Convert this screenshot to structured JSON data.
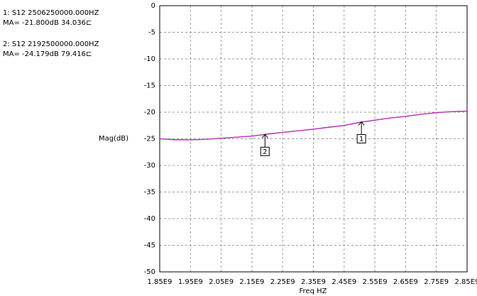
{
  "chart_data": {
    "type": "line",
    "ylabel": "Mag(dB)",
    "xlabel": "Freq HZ",
    "x": [
      1850000000,
      1900000000,
      1950000000,
      2000000000,
      2050000000,
      2100000000,
      2150000000,
      2200000000,
      2250000000,
      2300000000,
      2350000000,
      2400000000,
      2450000000,
      2500000000,
      2550000000,
      2600000000,
      2650000000,
      2700000000,
      2750000000,
      2800000000,
      2850000000
    ],
    "series": [
      {
        "name": "S12",
        "color": "#22aa22",
        "values": [
          -25.0,
          -25.15,
          -25.2,
          -25.1,
          -24.9,
          -24.7,
          -24.5,
          -24.1,
          -23.8,
          -23.5,
          -23.2,
          -22.8,
          -22.5,
          -21.9,
          -21.5,
          -21.1,
          -20.8,
          -20.4,
          -20.1,
          -19.9,
          -19.8
        ]
      },
      {
        "name": "S12",
        "color": "#cc22cc",
        "values": [
          -25.0,
          -25.2,
          -25.2,
          -25.1,
          -24.9,
          -24.7,
          -24.5,
          -24.15,
          -23.8,
          -23.5,
          -23.2,
          -22.85,
          -22.5,
          -21.95,
          -21.5,
          -21.1,
          -20.8,
          -20.4,
          -20.1,
          -19.9,
          -19.8
        ]
      }
    ],
    "xlim": [
      1850000000,
      2850000000
    ],
    "xticks": [
      {
        "value": 1850000000,
        "label": "1.85E9"
      },
      {
        "value": 1950000000,
        "label": "1.95E9"
      },
      {
        "value": 2050000000,
        "label": "2.05E9"
      },
      {
        "value": 2150000000,
        "label": "2.15E9"
      },
      {
        "value": 2250000000,
        "label": "2.25E9"
      },
      {
        "value": 2350000000,
        "label": "2.35E9"
      },
      {
        "value": 2450000000,
        "label": "2.45E9"
      },
      {
        "value": 2550000000,
        "label": "2.55E9"
      },
      {
        "value": 2650000000,
        "label": "2.65E9"
      },
      {
        "value": 2750000000,
        "label": "2.75E9"
      },
      {
        "value": 2850000000,
        "label": "2.85E9"
      }
    ],
    "ylim": [
      -50,
      0
    ],
    "yticks": [
      0,
      -5,
      -10,
      -15,
      -20,
      -25,
      -30,
      -35,
      -40,
      -45,
      -50
    ],
    "grid": true,
    "markers": [
      {
        "label": "1",
        "x": 2506250000,
        "y": -21.8,
        "readout": [
          "1: S12  2506250000.000HZ",
          "MA= -21.800dB 34.036⊏"
        ]
      },
      {
        "label": "2",
        "x": 2192500000,
        "y": -24.179,
        "readout": [
          "2: S12  2192500000.000HZ",
          "MA= -24.179dB 79.416⊏"
        ]
      }
    ]
  }
}
